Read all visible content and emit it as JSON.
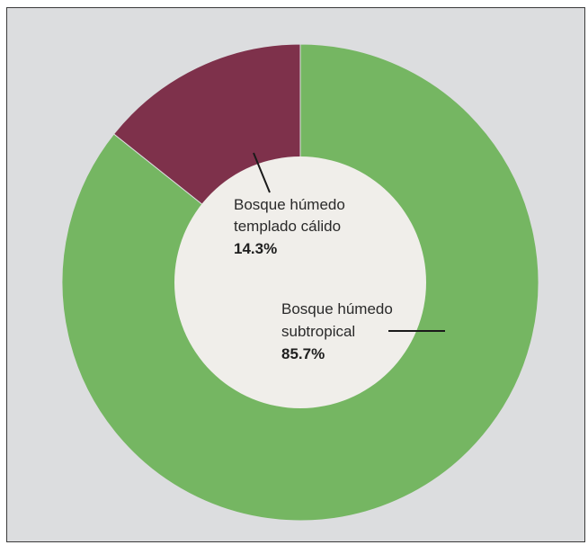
{
  "chart_data": {
    "type": "donut",
    "title": "",
    "slices": [
      {
        "label_line1": "Bosque húmedo",
        "label_line2": "subtropical",
        "value_text": "85.7%",
        "value": 85.7,
        "color": "#75b662"
      },
      {
        "label_line1": "Bosque húmedo",
        "label_line2": "templado cálido",
        "value_text": "14.3%",
        "value": 14.3,
        "color": "#7e314b"
      }
    ],
    "center_color": "#f0eeea",
    "background_color": "#dcdddf"
  }
}
